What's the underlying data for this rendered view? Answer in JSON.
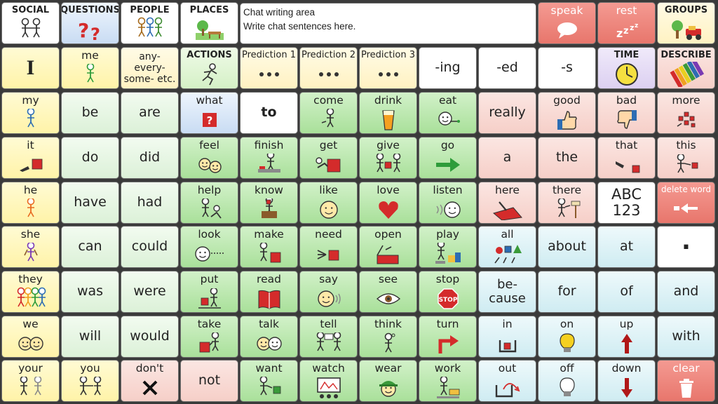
{
  "chat": {
    "line1": "Chat writing area",
    "line2": "Write chat sentences here."
  },
  "buttons": [
    {
      "label": "SOCIAL",
      "icon": "social-icon",
      "color": "white",
      "kind": "hdr"
    },
    {
      "label": "QUESTIONS",
      "icon": "question-marks-icon",
      "color": "blue",
      "kind": "hdr"
    },
    {
      "label": "PEOPLE",
      "icon": "people-icon",
      "color": "white",
      "kind": "hdr"
    },
    {
      "label": "PLACES",
      "icon": "park-icon",
      "color": "white",
      "kind": "hdr"
    },
    {
      "label": "speak",
      "icon": "speech-bubble-icon",
      "color": "red"
    },
    {
      "label": "rest",
      "icon": "sleep-zzz-icon",
      "color": "red"
    },
    {
      "label": "GROUPS",
      "icon": "groups-icon",
      "color": "cream",
      "kind": "hdr"
    },
    {
      "label": "I",
      "icon": "",
      "color": "yellow",
      "kind": "big"
    },
    {
      "label": "me",
      "icon": "person-icon",
      "color": "yellow"
    },
    {
      "label": "any-\nevery-\nsome- etc.",
      "icon": "",
      "color": "cream",
      "kind": "multi"
    },
    {
      "label": "ACTIONS",
      "icon": "running-person-icon",
      "color": "gray",
      "kind": "hdr"
    },
    {
      "label": "Prediction 1",
      "icon": "ellipsis-icon",
      "color": "cream",
      "kind": "pred"
    },
    {
      "label": "Prediction 2",
      "icon": "ellipsis-icon",
      "color": "cream",
      "kind": "pred"
    },
    {
      "label": "Prediction 3",
      "icon": "ellipsis-icon",
      "color": "cream",
      "kind": "pred"
    },
    {
      "label": "-ing",
      "icon": "",
      "color": "white",
      "kind": "txt"
    },
    {
      "label": "-ed",
      "icon": "",
      "color": "white",
      "kind": "txt"
    },
    {
      "label": "-s",
      "icon": "",
      "color": "white",
      "kind": "txt"
    },
    {
      "label": "TIME",
      "icon": "clock-icon",
      "color": "purple",
      "kind": "hdr"
    },
    {
      "label": "DESCRIBE",
      "icon": "crayons-icon",
      "color": "pink",
      "kind": "hdr"
    },
    {
      "label": "my",
      "icon": "person-self-icon",
      "color": "yellow"
    },
    {
      "label": "be",
      "icon": "",
      "color": "ltgreen",
      "kind": "txt"
    },
    {
      "label": "are",
      "icon": "",
      "color": "ltgreen",
      "kind": "txt"
    },
    {
      "label": "what",
      "icon": "question-box-icon",
      "color": "blue"
    },
    {
      "label": "to",
      "icon": "",
      "color": "white",
      "kind": "txt",
      "bold": true
    },
    {
      "label": "come",
      "icon": "come-icon",
      "color": "green"
    },
    {
      "label": "drink",
      "icon": "glass-icon",
      "color": "green"
    },
    {
      "label": "eat",
      "icon": "eat-icon",
      "color": "green"
    },
    {
      "label": "really",
      "icon": "",
      "color": "pink",
      "kind": "txt"
    },
    {
      "label": "good",
      "icon": "thumbs-up-icon",
      "color": "pink"
    },
    {
      "label": "bad",
      "icon": "thumbs-down-icon",
      "color": "pink"
    },
    {
      "label": "more",
      "icon": "more-icon",
      "color": "pink"
    },
    {
      "label": "it",
      "icon": "point-square-icon",
      "color": "yellow"
    },
    {
      "label": "do",
      "icon": "",
      "color": "ltgreen",
      "kind": "txt"
    },
    {
      "label": "did",
      "icon": "",
      "color": "ltgreen",
      "kind": "txt"
    },
    {
      "label": "feel",
      "icon": "faces-icon",
      "color": "green"
    },
    {
      "label": "finish",
      "icon": "finish-icon",
      "color": "green"
    },
    {
      "label": "get",
      "icon": "get-icon",
      "color": "green"
    },
    {
      "label": "give",
      "icon": "give-icon",
      "color": "green"
    },
    {
      "label": "go",
      "icon": "arrow-right-icon",
      "color": "green"
    },
    {
      "label": "a",
      "icon": "",
      "color": "pink",
      "kind": "txt"
    },
    {
      "label": "the",
      "icon": "",
      "color": "pink",
      "kind": "txt"
    },
    {
      "label": "that",
      "icon": "point-far-icon",
      "color": "pink"
    },
    {
      "label": "this",
      "icon": "point-near-icon",
      "color": "pink"
    },
    {
      "label": "he",
      "icon": "boy-icon",
      "color": "yellow"
    },
    {
      "label": "have",
      "icon": "",
      "color": "ltgreen",
      "kind": "txt"
    },
    {
      "label": "had",
      "icon": "",
      "color": "ltgreen",
      "kind": "txt"
    },
    {
      "label": "help",
      "icon": "help-icon",
      "color": "green"
    },
    {
      "label": "know",
      "icon": "know-icon",
      "color": "green"
    },
    {
      "label": "like",
      "icon": "smile-icon",
      "color": "green"
    },
    {
      "label": "love",
      "icon": "heart-icon",
      "color": "green"
    },
    {
      "label": "listen",
      "icon": "listen-icon",
      "color": "green"
    },
    {
      "label": "here",
      "icon": "here-icon",
      "color": "pink"
    },
    {
      "label": "there",
      "icon": "there-icon",
      "color": "pink"
    },
    {
      "label": "ABC\n123",
      "icon": "",
      "color": "white",
      "kind": "abc"
    },
    {
      "label": "delete word",
      "icon": "delete-arrow-icon",
      "color": "red",
      "kind": "small"
    },
    {
      "label": "she",
      "icon": "girl-icon",
      "color": "yellow"
    },
    {
      "label": "can",
      "icon": "",
      "color": "ltgreen",
      "kind": "txt"
    },
    {
      "label": "could",
      "icon": "",
      "color": "ltgreen",
      "kind": "txt"
    },
    {
      "label": "look",
      "icon": "look-icon",
      "color": "green"
    },
    {
      "label": "make",
      "icon": "make-icon",
      "color": "green"
    },
    {
      "label": "need",
      "icon": "need-icon",
      "color": "green"
    },
    {
      "label": "open",
      "icon": "open-box-icon",
      "color": "green"
    },
    {
      "label": "play",
      "icon": "play-icon",
      "color": "green"
    },
    {
      "label": "all",
      "icon": "shapes-icon",
      "color": "ltblue"
    },
    {
      "label": "about",
      "icon": "",
      "color": "ltblue",
      "kind": "txt"
    },
    {
      "label": "at",
      "icon": "",
      "color": "ltblue",
      "kind": "txt"
    },
    {
      "label": ".",
      "icon": "",
      "color": "white",
      "kind": "dot"
    },
    {
      "label": "they",
      "icon": "group-people-icon",
      "color": "yellow"
    },
    {
      "label": "was",
      "icon": "",
      "color": "ltgreen",
      "kind": "txt"
    },
    {
      "label": "were",
      "icon": "",
      "color": "ltgreen",
      "kind": "txt"
    },
    {
      "label": "put",
      "icon": "put-icon",
      "color": "green"
    },
    {
      "label": "read",
      "icon": "book-icon",
      "color": "green"
    },
    {
      "label": "say",
      "icon": "say-icon",
      "color": "green"
    },
    {
      "label": "see",
      "icon": "eye-icon",
      "color": "green"
    },
    {
      "label": "stop",
      "icon": "stop-sign-icon",
      "color": "green"
    },
    {
      "label": "be-\ncause",
      "icon": "",
      "color": "ltblue",
      "kind": "multi2"
    },
    {
      "label": "for",
      "icon": "",
      "color": "ltblue",
      "kind": "txt"
    },
    {
      "label": "of",
      "icon": "",
      "color": "ltblue",
      "kind": "txt"
    },
    {
      "label": "and",
      "icon": "",
      "color": "ltblue",
      "kind": "txt"
    },
    {
      "label": "we",
      "icon": "two-faces-icon",
      "color": "yellow"
    },
    {
      "label": "will",
      "icon": "",
      "color": "ltgreen",
      "kind": "txt"
    },
    {
      "label": "would",
      "icon": "",
      "color": "ltgreen",
      "kind": "txt"
    },
    {
      "label": "take",
      "icon": "take-icon",
      "color": "green"
    },
    {
      "label": "talk",
      "icon": "talk-icon",
      "color": "green"
    },
    {
      "label": "tell",
      "icon": "tell-icon",
      "color": "green"
    },
    {
      "label": "think",
      "icon": "think-icon",
      "color": "green"
    },
    {
      "label": "turn",
      "icon": "turn-arrow-icon",
      "color": "green"
    },
    {
      "label": "in",
      "icon": "in-box-icon",
      "color": "ltblue"
    },
    {
      "label": "on",
      "icon": "bulb-on-icon",
      "color": "ltblue"
    },
    {
      "label": "up",
      "icon": "arrow-up-icon",
      "color": "ltblue"
    },
    {
      "label": "with",
      "icon": "",
      "color": "ltblue",
      "kind": "txt"
    },
    {
      "label": "your",
      "icon": "your-icon",
      "color": "yellow"
    },
    {
      "label": "you",
      "icon": "you-icon",
      "color": "yellow"
    },
    {
      "label": "don't",
      "icon": "cross-icon",
      "color": "pink"
    },
    {
      "label": "not",
      "icon": "",
      "color": "pink",
      "kind": "txt"
    },
    {
      "label": "want",
      "icon": "want-icon",
      "color": "green"
    },
    {
      "label": "watch",
      "icon": "watch-tv-icon",
      "color": "green"
    },
    {
      "label": "wear",
      "icon": "cap-icon",
      "color": "green"
    },
    {
      "label": "work",
      "icon": "work-icon",
      "color": "green"
    },
    {
      "label": "out",
      "icon": "out-box-icon",
      "color": "ltblue"
    },
    {
      "label": "off",
      "icon": "bulb-off-icon",
      "color": "ltblue"
    },
    {
      "label": "down",
      "icon": "arrow-down-icon",
      "color": "ltblue"
    },
    {
      "label": "clear",
      "icon": "trash-icon",
      "color": "red"
    }
  ],
  "colors": {
    "accent_red": "#e8766c",
    "red": "#d42b2b",
    "green": "#2e9c3a",
    "person": "#333333"
  }
}
